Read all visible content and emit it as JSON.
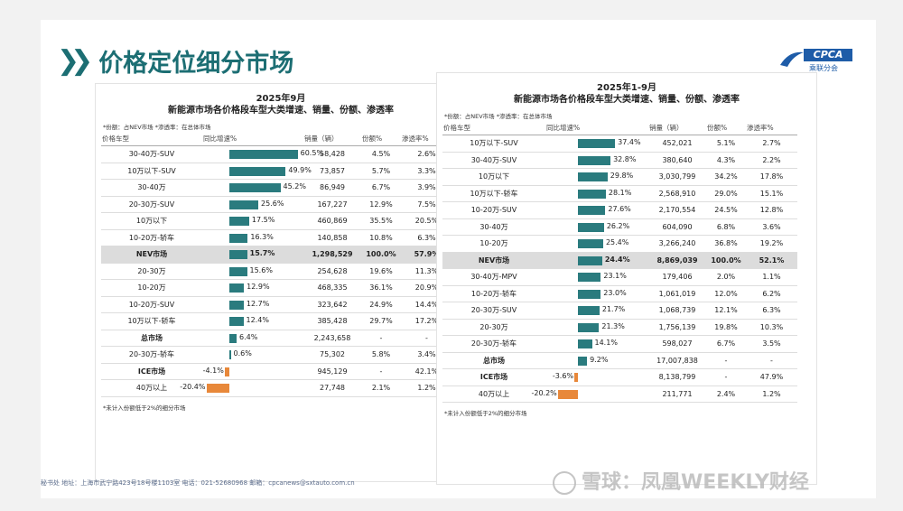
{
  "header": {
    "title": "价格定位细分市场",
    "logo_text": "CPCA",
    "logo_sub": "乘联分会"
  },
  "left": {
    "title_line1": "2025年9月",
    "title_line2": "新能源市场各价格段车型大类增速、销量、份额、渗透率",
    "note": "*份额：占NEV市场  *渗透率：在总体市场",
    "headers": [
      "价格车型",
      "同比增速%",
      "销量（辆）",
      "份额%",
      "渗透率%"
    ],
    "footnote": "*未计入份额低于2%的细分市场",
    "rows": [
      {
        "cat": "30-40万-SUV",
        "growth": 60.5,
        "glabel": "60.5%",
        "sales": "58,428",
        "share": "4.5%",
        "pen": "2.6%"
      },
      {
        "cat": "10万以下-SUV",
        "growth": 49.9,
        "glabel": "49.9%",
        "sales": "73,857",
        "share": "5.7%",
        "pen": "3.3%"
      },
      {
        "cat": "30-40万",
        "growth": 45.2,
        "glabel": "45.2%",
        "sales": "86,949",
        "share": "6.7%",
        "pen": "3.9%"
      },
      {
        "cat": "20-30万-SUV",
        "growth": 25.6,
        "glabel": "25.6%",
        "sales": "167,227",
        "share": "12.9%",
        "pen": "7.5%"
      },
      {
        "cat": "10万以下",
        "growth": 17.5,
        "glabel": "17.5%",
        "sales": "460,869",
        "share": "35.5%",
        "pen": "20.5%"
      },
      {
        "cat": "10-20万-轿车",
        "growth": 16.3,
        "glabel": "16.3%",
        "sales": "140,858",
        "share": "10.8%",
        "pen": "6.3%"
      },
      {
        "cat": "NEV市场",
        "growth": 15.7,
        "glabel": "15.7%",
        "sales": "1,298,529",
        "share": "100.0%",
        "pen": "57.9%",
        "hl": true
      },
      {
        "cat": "20-30万",
        "growth": 15.6,
        "glabel": "15.6%",
        "sales": "254,628",
        "share": "19.6%",
        "pen": "11.3%"
      },
      {
        "cat": "10-20万",
        "growth": 12.9,
        "glabel": "12.9%",
        "sales": "468,335",
        "share": "36.1%",
        "pen": "20.9%"
      },
      {
        "cat": "10-20万-SUV",
        "growth": 12.7,
        "glabel": "12.7%",
        "sales": "323,642",
        "share": "24.9%",
        "pen": "14.4%"
      },
      {
        "cat": "10万以下-轿车",
        "growth": 12.4,
        "glabel": "12.4%",
        "sales": "385,428",
        "share": "29.7%",
        "pen": "17.2%"
      },
      {
        "cat": "总市场",
        "growth": 6.4,
        "glabel": "6.4%",
        "sales": "2,243,658",
        "share": "-",
        "pen": "-",
        "bold": true
      },
      {
        "cat": "20-30万-轿车",
        "growth": 0.6,
        "glabel": "0.6%",
        "sales": "75,302",
        "share": "5.8%",
        "pen": "3.4%"
      },
      {
        "cat": "ICE市场",
        "growth": -4.1,
        "glabel": "-4.1%",
        "sales": "945,129",
        "share": "-",
        "pen": "42.1%",
        "bold": true
      },
      {
        "cat": "40万以上",
        "growth": -20.4,
        "glabel": "-20.4%",
        "sales": "27,748",
        "share": "2.1%",
        "pen": "1.2%"
      }
    ]
  },
  "right": {
    "title_line1": "2025年1-9月",
    "title_line2": "新能源市场各价格段车型大类增速、销量、份额、渗透率",
    "note": "*份额：占NEV市场  *渗透率：在总体市场",
    "headers": [
      "价格车型",
      "同比增速%",
      "销量（辆）",
      "份额%",
      "渗透率%"
    ],
    "footnote": "*未计入份额低于2%的细分市场",
    "rows": [
      {
        "cat": "10万以下-SUV",
        "growth": 37.4,
        "glabel": "37.4%",
        "sales": "452,021",
        "share": "5.1%",
        "pen": "2.7%"
      },
      {
        "cat": "30-40万-SUV",
        "growth": 32.8,
        "glabel": "32.8%",
        "sales": "380,640",
        "share": "4.3%",
        "pen": "2.2%"
      },
      {
        "cat": "10万以下",
        "growth": 29.8,
        "glabel": "29.8%",
        "sales": "3,030,799",
        "share": "34.2%",
        "pen": "17.8%"
      },
      {
        "cat": "10万以下-轿车",
        "growth": 28.1,
        "glabel": "28.1%",
        "sales": "2,568,910",
        "share": "29.0%",
        "pen": "15.1%"
      },
      {
        "cat": "10-20万-SUV",
        "growth": 27.6,
        "glabel": "27.6%",
        "sales": "2,170,554",
        "share": "24.5%",
        "pen": "12.8%"
      },
      {
        "cat": "30-40万",
        "growth": 26.2,
        "glabel": "26.2%",
        "sales": "604,090",
        "share": "6.8%",
        "pen": "3.6%"
      },
      {
        "cat": "10-20万",
        "growth": 25.4,
        "glabel": "25.4%",
        "sales": "3,266,240",
        "share": "36.8%",
        "pen": "19.2%"
      },
      {
        "cat": "NEV市场",
        "growth": 24.4,
        "glabel": "24.4%",
        "sales": "8,869,039",
        "share": "100.0%",
        "pen": "52.1%",
        "hl": true
      },
      {
        "cat": "30-40万-MPV",
        "growth": 23.1,
        "glabel": "23.1%",
        "sales": "179,406",
        "share": "2.0%",
        "pen": "1.1%"
      },
      {
        "cat": "10-20万-轿车",
        "growth": 23.0,
        "glabel": "23.0%",
        "sales": "1,061,019",
        "share": "12.0%",
        "pen": "6.2%"
      },
      {
        "cat": "20-30万-SUV",
        "growth": 21.7,
        "glabel": "21.7%",
        "sales": "1,068,739",
        "share": "12.1%",
        "pen": "6.3%"
      },
      {
        "cat": "20-30万",
        "growth": 21.3,
        "glabel": "21.3%",
        "sales": "1,756,139",
        "share": "19.8%",
        "pen": "10.3%"
      },
      {
        "cat": "20-30万-轿车",
        "growth": 14.1,
        "glabel": "14.1%",
        "sales": "598,027",
        "share": "6.7%",
        "pen": "3.5%"
      },
      {
        "cat": "总市场",
        "growth": 9.2,
        "glabel": "9.2%",
        "sales": "17,007,838",
        "share": "-",
        "pen": "-",
        "bold": true
      },
      {
        "cat": "ICE市场",
        "growth": -3.6,
        "glabel": "-3.6%",
        "sales": "8,138,799",
        "share": "-",
        "pen": "47.9%",
        "bold": true
      },
      {
        "cat": "40万以上",
        "growth": -20.2,
        "glabel": "-20.2%",
        "sales": "211,771",
        "share": "2.4%",
        "pen": "1.2%"
      }
    ]
  },
  "footer": {
    "text": "秘书处  地址：上海市武宁路423号18号楼1103室  电话：021-52680968  邮箱：cpcanews@sxtauto.com.cn"
  },
  "watermark": {
    "text": "雪球：凤凰WEEKLY财经"
  },
  "colors": {
    "positive_bar": "#2a7b7e",
    "negative_bar": "#e8883a",
    "title": "#1c6e73"
  }
}
